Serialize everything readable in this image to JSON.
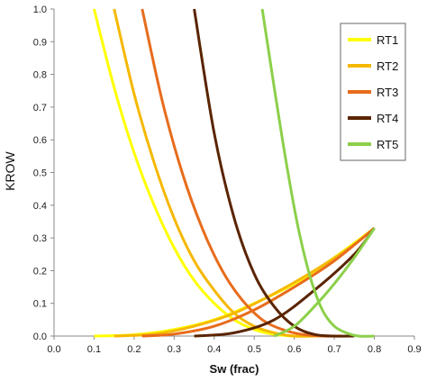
{
  "chart_data": {
    "type": "line",
    "title": "",
    "xlabel": "Sw (frac)",
    "ylabel": "KROW",
    "xlim": [
      0.0,
      0.9
    ],
    "ylim": [
      0.0,
      1.0
    ],
    "x_ticks": [
      "0.0",
      "0.1",
      "0.2",
      "0.3",
      "0.4",
      "0.5",
      "0.6",
      "0.7",
      "0.8",
      "0.9"
    ],
    "y_ticks": [
      "0.0",
      "0.1",
      "0.2",
      "0.3",
      "0.4",
      "0.5",
      "0.6",
      "0.7",
      "0.8",
      "0.9",
      "1.0"
    ],
    "grid": false,
    "legend_position": "top-right",
    "series": [
      {
        "name": "RT1",
        "color": "#ffff00",
        "krow": {
          "x": [
            0.1,
            0.15,
            0.2,
            0.25,
            0.3,
            0.35,
            0.4,
            0.45,
            0.5,
            0.55,
            0.6,
            0.65,
            0.7
          ],
          "y": [
            1.0,
            0.76,
            0.56,
            0.4,
            0.27,
            0.17,
            0.1,
            0.05,
            0.02,
            0.005,
            0.0,
            0.0,
            0.0
          ]
        },
        "krw": {
          "x": [
            0.1,
            0.2,
            0.3,
            0.4,
            0.5,
            0.6,
            0.7,
            0.8
          ],
          "y": [
            0.0,
            0.004,
            0.02,
            0.05,
            0.1,
            0.16,
            0.24,
            0.33
          ]
        }
      },
      {
        "name": "RT2",
        "color": "#f5b800",
        "krow": {
          "x": [
            0.15,
            0.2,
            0.25,
            0.3,
            0.35,
            0.4,
            0.45,
            0.5,
            0.55,
            0.6,
            0.65,
            0.7
          ],
          "y": [
            1.0,
            0.74,
            0.53,
            0.36,
            0.23,
            0.14,
            0.07,
            0.03,
            0.01,
            0.0,
            0.0,
            0.0
          ]
        },
        "krw": {
          "x": [
            0.15,
            0.25,
            0.35,
            0.45,
            0.55,
            0.65,
            0.75,
            0.8
          ],
          "y": [
            0.0,
            0.006,
            0.03,
            0.07,
            0.13,
            0.2,
            0.28,
            0.33
          ]
        }
      },
      {
        "name": "RT3",
        "color": "#e86c1c",
        "krow": {
          "x": [
            0.22,
            0.27,
            0.32,
            0.37,
            0.42,
            0.47,
            0.52,
            0.57,
            0.62,
            0.67,
            0.72
          ],
          "y": [
            1.0,
            0.72,
            0.5,
            0.33,
            0.2,
            0.11,
            0.05,
            0.02,
            0.005,
            0.0,
            0.0
          ]
        },
        "krw": {
          "x": [
            0.22,
            0.3,
            0.4,
            0.5,
            0.6,
            0.7,
            0.8
          ],
          "y": [
            0.0,
            0.006,
            0.03,
            0.08,
            0.15,
            0.23,
            0.33
          ]
        }
      },
      {
        "name": "RT4",
        "color": "#5a2400",
        "krow": {
          "x": [
            0.35,
            0.4,
            0.45,
            0.5,
            0.55,
            0.6,
            0.65,
            0.7,
            0.75
          ],
          "y": [
            1.0,
            0.62,
            0.36,
            0.19,
            0.09,
            0.03,
            0.005,
            0.0,
            0.0
          ]
        },
        "krw": {
          "x": [
            0.35,
            0.45,
            0.55,
            0.65,
            0.75,
            0.8
          ],
          "y": [
            0.0,
            0.01,
            0.05,
            0.14,
            0.25,
            0.33
          ]
        }
      },
      {
        "name": "RT5",
        "color": "#8cd04a",
        "krow": {
          "x": [
            0.52,
            0.55,
            0.58,
            0.61,
            0.64,
            0.67,
            0.7,
            0.73,
            0.76,
            0.8
          ],
          "y": [
            1.0,
            0.76,
            0.53,
            0.33,
            0.18,
            0.08,
            0.03,
            0.01,
            0.0,
            0.0
          ]
        },
        "krw": {
          "x": [
            0.55,
            0.6,
            0.65,
            0.7,
            0.75,
            0.8
          ],
          "y": [
            0.0,
            0.03,
            0.09,
            0.16,
            0.24,
            0.33
          ]
        }
      }
    ]
  }
}
